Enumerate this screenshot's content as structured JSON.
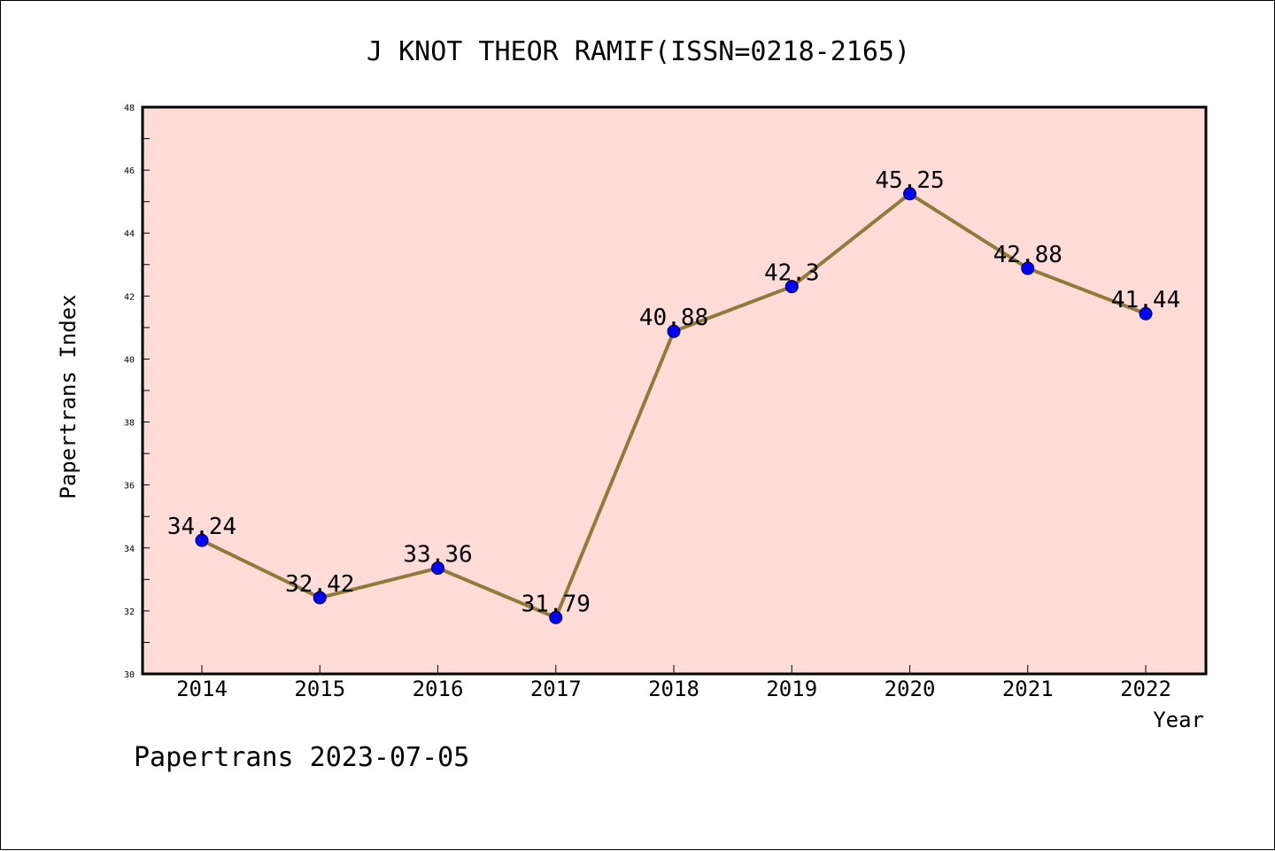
{
  "chart_data": {
    "type": "line",
    "title": "J KNOT THEOR RAMIF(ISSN=0218-2165)",
    "xlabel": "Year",
    "ylabel": "Papertrans Index",
    "categories": [
      "2014",
      "2015",
      "2016",
      "2017",
      "2018",
      "2019",
      "2020",
      "2021",
      "2022"
    ],
    "values": [
      34.24,
      32.42,
      33.36,
      31.79,
      40.88,
      42.3,
      45.25,
      42.88,
      41.44
    ],
    "data_labels": [
      "34.24",
      "32.42",
      "33.36",
      "31.79",
      "40.88",
      "42.3",
      "45.25",
      "42.88",
      "41.44"
    ],
    "ylim": [
      30,
      48
    ],
    "yticks": [
      30,
      32,
      34,
      36,
      38,
      40,
      42,
      44,
      46,
      48
    ],
    "ytick_labels": [
      "30",
      "32",
      "34",
      "36",
      "38",
      "40",
      "42",
      "44",
      "46",
      "48"
    ],
    "grid": false,
    "colors": {
      "plot_background": "#ffdcd8",
      "line": "#8f7c3a",
      "marker": "#0000ff"
    }
  },
  "footer": {
    "text": "Papertrans 2023-07-05"
  }
}
